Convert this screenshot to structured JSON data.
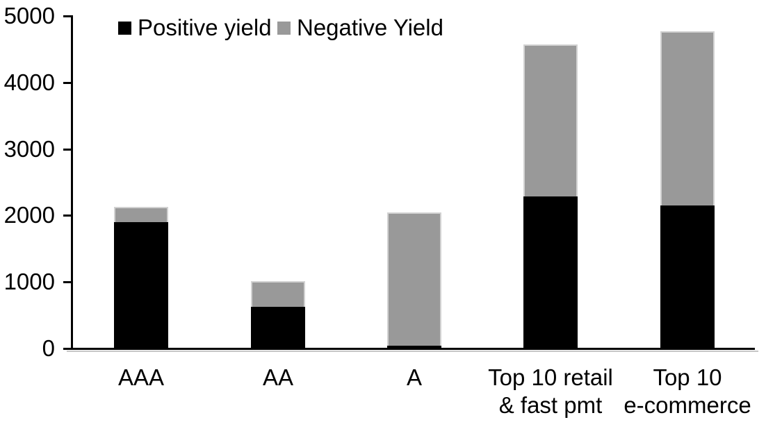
{
  "chart_data": {
    "type": "bar",
    "stacked": true,
    "title": "",
    "xlabel": "",
    "ylabel": "",
    "categories": [
      "AAA",
      "AA",
      "A",
      "Top 10 retail & fast pmt",
      "Top 10 e-commerce"
    ],
    "category_lines": [
      [
        "AAA"
      ],
      [
        "AA"
      ],
      [
        "A"
      ],
      [
        "Top 10 retail",
        "& fast pmt"
      ],
      [
        "Top 10",
        "e-commerce"
      ]
    ],
    "series": [
      {
        "name": "Positive yield",
        "color": "#000000",
        "values": [
          1900,
          630,
          45,
          2285,
          2155
        ]
      },
      {
        "name": "Negative Yield",
        "color": "#999999",
        "values": [
          230,
          380,
          2000,
          2290,
          2615
        ]
      }
    ],
    "totals": [
      2130,
      1010,
      2045,
      4575,
      4770
    ],
    "ylim": [
      0,
      5000
    ],
    "yticks": [
      0,
      1000,
      2000,
      3000,
      4000,
      5000
    ],
    "ytick_labels": [
      "0",
      "1000",
      "2000",
      "3000",
      "4000",
      "5000"
    ],
    "grid": false,
    "legend_position": "top",
    "axis_color": "#000000",
    "bar_border_color": "#d2d2d2",
    "background_color": "#ffffff"
  }
}
